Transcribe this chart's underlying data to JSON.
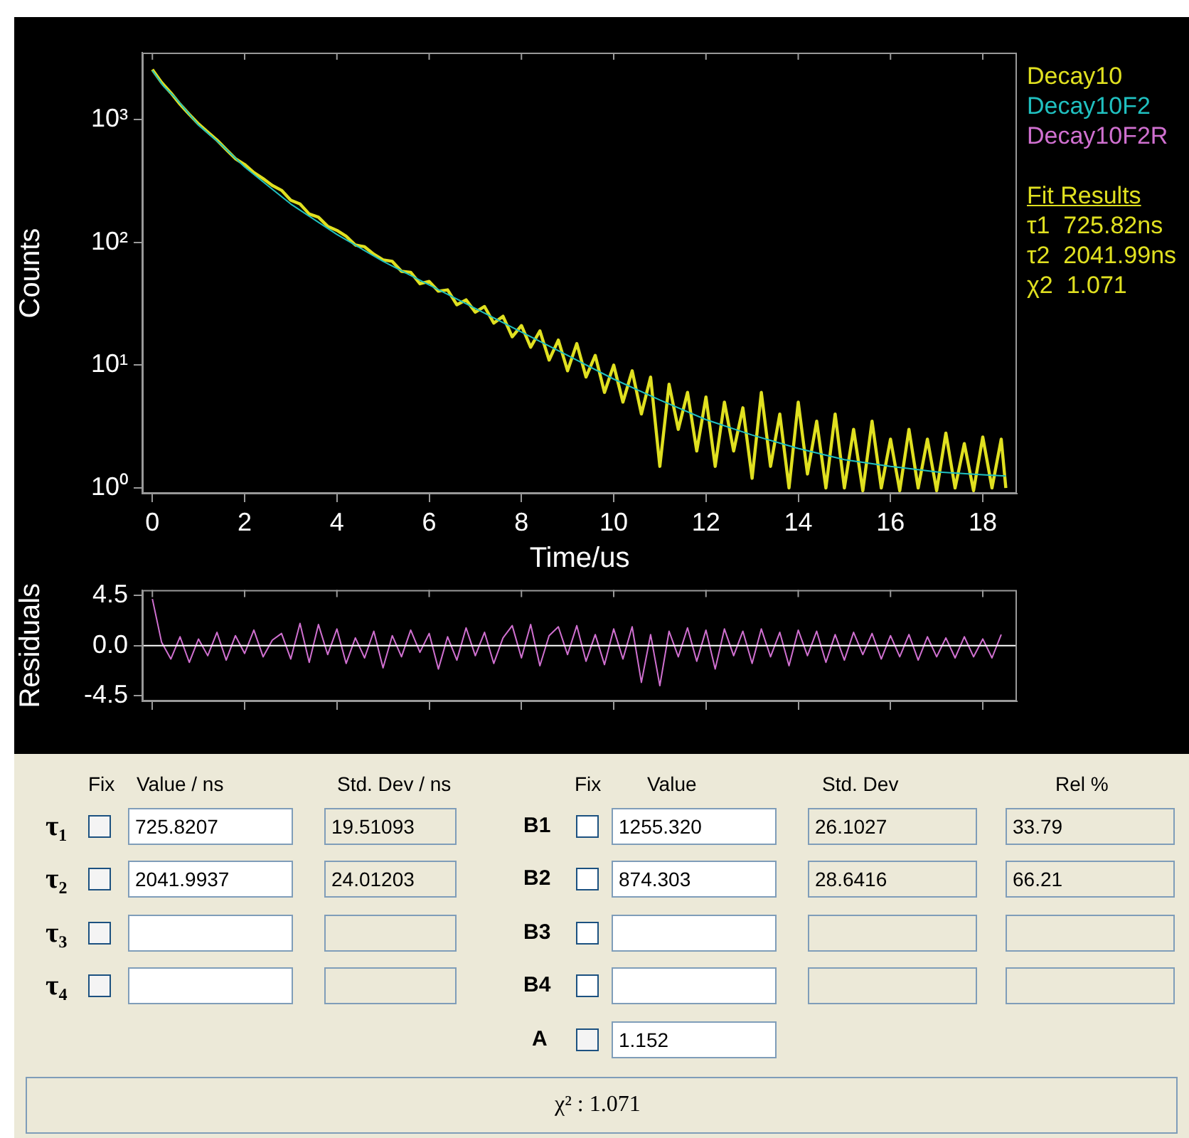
{
  "chart_data": [
    {
      "type": "line",
      "xlabel": "Time/us",
      "ylabel": "Counts",
      "xlim": [
        -0.22,
        18.74
      ],
      "xticks": [
        0,
        2,
        4,
        6,
        8,
        10,
        12,
        14,
        16,
        18
      ],
      "ylim": [
        0.9,
        3500
      ],
      "yticks": [
        {
          "value": 1,
          "label": "10⁰"
        },
        {
          "value": 10,
          "label": "10¹"
        },
        {
          "value": 100,
          "label": "10²"
        },
        {
          "value": 1000,
          "label": "10³"
        }
      ],
      "log": "y",
      "grid": false,
      "legend": "top right",
      "marker": "none",
      "line_style": "solid",
      "series": [
        {
          "name": "Decay10",
          "color": "#e0e020",
          "x": [
            0,
            0.2,
            0.4,
            0.6,
            0.8,
            1.0,
            1.2,
            1.4,
            1.6,
            1.8,
            2.0,
            2.2,
            2.4,
            2.6,
            2.8,
            3.0,
            3.2,
            3.4,
            3.6,
            3.8,
            4.0,
            4.2,
            4.4,
            4.6,
            4.8,
            5.0,
            5.2,
            5.4,
            5.6,
            5.8,
            6.0,
            6.2,
            6.4,
            6.6,
            6.8,
            7.0,
            7.2,
            7.4,
            7.6,
            7.8,
            8.0,
            8.2,
            8.4,
            8.6,
            8.8,
            9.0,
            9.2,
            9.4,
            9.6,
            9.8,
            10.0,
            10.2,
            10.4,
            10.6,
            10.8,
            11.0,
            11.2,
            11.4,
            11.6,
            11.8,
            12.0,
            12.2,
            12.4,
            12.6,
            12.8,
            13.0,
            13.2,
            13.4,
            13.6,
            13.8,
            14.0,
            14.2,
            14.4,
            14.6,
            14.8,
            15.0,
            15.2,
            15.4,
            15.6,
            15.8,
            16.0,
            16.2,
            16.4,
            16.6,
            16.8,
            17.0,
            17.2,
            17.4,
            17.6,
            17.8,
            18.0,
            18.2,
            18.4,
            18.5
          ],
          "values": [
            2550,
            2000,
            1650,
            1330,
            1100,
            920,
            790,
            680,
            570,
            480,
            430,
            370,
            330,
            290,
            265,
            220,
            205,
            170,
            160,
            135,
            125,
            112,
            95,
            92,
            80,
            72,
            70,
            58,
            57,
            46,
            48,
            40,
            41,
            31,
            34,
            27,
            30,
            22,
            25,
            17,
            21,
            14,
            19,
            11,
            16,
            9,
            15,
            8,
            12,
            6,
            10,
            5,
            9,
            4,
            8,
            1.5,
            7,
            3,
            6,
            2,
            5.5,
            1.5,
            5,
            2,
            4.5,
            1.2,
            6,
            1.5,
            4,
            1,
            5,
            1.3,
            3.5,
            1,
            4,
            1,
            3,
            0.95,
            3.5,
            1,
            2.5,
            0.95,
            3,
            1,
            2.5,
            0.95,
            2.8,
            1,
            2.3,
            0.95,
            2.6,
            1,
            2.5,
            1
          ]
        },
        {
          "name": "Decay10F2",
          "color": "#20c0c0",
          "x": [
            0,
            0.25,
            0.5,
            1,
            1.5,
            2,
            3,
            4,
            5,
            6,
            7,
            8,
            9,
            10,
            11,
            12,
            13,
            14,
            15,
            16,
            17,
            18,
            18.5
          ],
          "values": [
            2500,
            1850,
            1500,
            900,
            620,
            410,
            205,
            116,
            70,
            45,
            29,
            18.6,
            12,
            7.7,
            5.2,
            3.6,
            2.7,
            2.1,
            1.7,
            1.5,
            1.35,
            1.28,
            1.25
          ]
        }
      ],
      "annotations": [
        "Fit Results",
        "τ1  725.82ns",
        "τ2  2041.99ns",
        "χ2  1.071"
      ]
    },
    {
      "type": "line",
      "ylabel": "Residuals",
      "xlim": [
        -0.22,
        18.74
      ],
      "xticks": [
        0,
        2,
        4,
        6,
        8,
        10,
        12,
        14,
        16,
        18
      ],
      "ylim": [
        -5,
        5
      ],
      "yticks": [
        -4.5,
        {
          "value": 0,
          "label": "0.0"
        },
        4.5
      ],
      "tick_labels": "y",
      "grid": false,
      "legend": "top right",
      "marker": "none",
      "line_style": "solid",
      "ref_lines": [
        {
          "axis": "y",
          "value": 0,
          "color": "#ffffff"
        }
      ],
      "series": [
        {
          "name": "Decay10F2R",
          "color": "#d070d0",
          "x": [
            0,
            0.2,
            0.4,
            0.6,
            0.8,
            1.0,
            1.2,
            1.4,
            1.6,
            1.8,
            2.0,
            2.2,
            2.4,
            2.6,
            2.8,
            3.0,
            3.2,
            3.4,
            3.6,
            3.8,
            4.0,
            4.2,
            4.4,
            4.6,
            4.8,
            5.0,
            5.2,
            5.4,
            5.6,
            5.8,
            6.0,
            6.2,
            6.4,
            6.6,
            6.8,
            7.0,
            7.2,
            7.4,
            7.6,
            7.8,
            8.0,
            8.2,
            8.4,
            8.6,
            8.8,
            9.0,
            9.2,
            9.4,
            9.6,
            9.8,
            10.0,
            10.2,
            10.4,
            10.6,
            10.8,
            11.0,
            11.2,
            11.4,
            11.6,
            11.8,
            12.0,
            12.2,
            12.4,
            12.6,
            12.8,
            13.0,
            13.2,
            13.4,
            13.6,
            13.8,
            14.0,
            14.2,
            14.4,
            14.6,
            14.8,
            15.0,
            15.2,
            15.4,
            15.6,
            15.8,
            16.0,
            16.2,
            16.4,
            16.6,
            16.8,
            17.0,
            17.2,
            17.4,
            17.6,
            17.8,
            18.0,
            18.2,
            18.4
          ],
          "values": [
            4.2,
            0.3,
            -1.2,
            0.8,
            -1.5,
            0.6,
            -0.9,
            1.2,
            -1.3,
            0.9,
            -0.7,
            1.4,
            -1.0,
            0.5,
            1.1,
            -1.2,
            2.0,
            -1.5,
            1.9,
            -0.8,
            1.5,
            -1.6,
            0.7,
            -1.1,
            1.3,
            -2.0,
            0.9,
            -1.0,
            1.4,
            -0.6,
            1.1,
            -2.1,
            0.8,
            -1.3,
            1.6,
            -0.9,
            1.2,
            -1.6,
            0.7,
            1.8,
            -1.1,
            1.9,
            -1.8,
            0.9,
            1.7,
            -0.8,
            1.8,
            -1.4,
            1.0,
            -1.7,
            1.5,
            -1.2,
            1.7,
            -3.3,
            1.0,
            -3.6,
            1.3,
            -1.0,
            1.6,
            -1.4,
            1.4,
            -2.1,
            1.5,
            -0.9,
            1.3,
            -1.6,
            1.5,
            -1.0,
            1.2,
            -1.8,
            1.4,
            -0.9,
            1.3,
            -1.5,
            1.0,
            -1.3,
            1.2,
            -0.8,
            1.1,
            -1.2,
            0.9,
            -1.0,
            1.0,
            -1.3,
            0.8,
            -1.0,
            0.7,
            -1.1,
            0.8,
            -1.0,
            0.6,
            -1.1,
            1.0
          ]
        }
      ]
    },
    {
      "type": "other",
      "annotations": [
        "Fix",
        "Value / ns",
        "Std. Dev / ns",
        "Fix",
        "Value",
        "Std. Dev",
        "Rel %",
        "τ₁",
        "725.8207",
        "19.51093",
        "B1",
        "1255.320",
        "26.1027",
        "33.79",
        "τ₂",
        "2041.9937",
        "24.01203",
        "B2",
        "874.303",
        "28.6416",
        "66.21",
        "τ₃",
        "B3",
        "τ₄",
        "B4",
        "A",
        "1.152",
        "χ² : 1.071"
      ]
    }
  ]
}
